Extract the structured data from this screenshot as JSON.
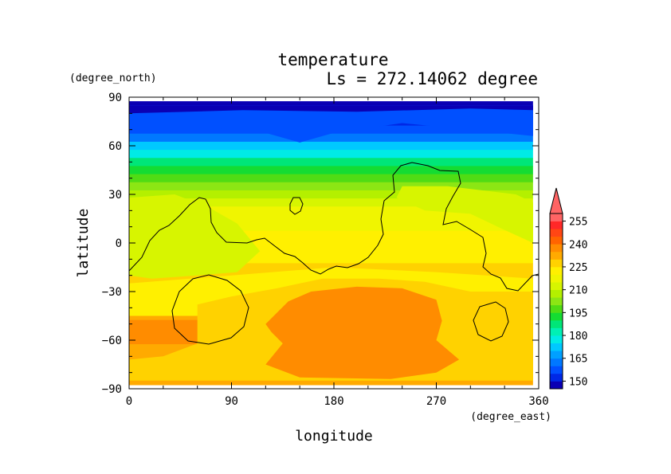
{
  "chart_data": {
    "type": "heatmap",
    "title": "temperature",
    "subtitle": "Ls = 272.14062 degree",
    "xlabel": "longitude",
    "ylabel": "latitude",
    "x_unit": "(degree_east)",
    "y_unit": "(degree_north)",
    "xlim": [
      0,
      360
    ],
    "ylim": [
      -90,
      90
    ],
    "x_ticks": [
      "0",
      "90",
      "180",
      "270",
      "360"
    ],
    "y_ticks": [
      "90",
      "60",
      "30",
      "0",
      "−30",
      "−60",
      "−90"
    ],
    "x_tick_values": [
      0,
      90,
      180,
      270,
      360
    ],
    "y_tick_values": [
      90,
      60,
      30,
      0,
      -30,
      -60,
      -90
    ],
    "colorbar": {
      "levels": [
        145,
        150,
        155,
        160,
        165,
        170,
        175,
        180,
        185,
        190,
        195,
        200,
        205,
        210,
        215,
        220,
        225,
        230,
        235,
        240,
        245,
        250,
        255,
        260
      ],
      "tick_labels": [
        "150",
        "165",
        "180",
        "195",
        "210",
        "225",
        "240",
        "255"
      ],
      "tick_values": [
        150,
        165,
        180,
        195,
        210,
        225,
        240,
        255
      ],
      "colors": [
        "#0a00b4",
        "#0028e6",
        "#0050ff",
        "#0078ff",
        "#00a0ff",
        "#00c8ff",
        "#00ebe6",
        "#00f0b4",
        "#00e678",
        "#14dc32",
        "#50dc14",
        "#8ce614",
        "#b4f000",
        "#d7f500",
        "#f0f500",
        "#fff000",
        "#ffd200",
        "#ffaa00",
        "#ff8c00",
        "#ff6400",
        "#ff4614",
        "#ff2828",
        "#ff6464"
      ],
      "extend_max": true
    },
    "lat_rows": [
      85,
      80,
      75,
      70,
      65,
      60,
      55,
      50,
      45,
      40,
      35,
      30,
      25,
      20,
      15,
      10,
      5,
      0,
      -5,
      -10,
      -15,
      -20,
      -25,
      -30,
      -35,
      -40,
      -45,
      -50,
      -55,
      -60,
      -65,
      -70,
      -75,
      -80,
      -85
    ],
    "temperature_by_lat": [
      147,
      149,
      152,
      157,
      163,
      170,
      178,
      186,
      193,
      199,
      204,
      208,
      212,
      215,
      217,
      219,
      221,
      222,
      223,
      224,
      225,
      226,
      227,
      229,
      231,
      233,
      234,
      235,
      235,
      235,
      234,
      234,
      233,
      232,
      231
    ]
  }
}
